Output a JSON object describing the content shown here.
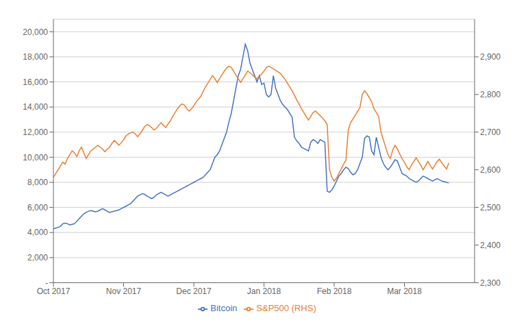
{
  "chart_data": {
    "type": "line",
    "x": [
      0,
      1,
      2,
      3,
      4,
      5,
      6,
      7,
      8,
      9,
      10,
      11,
      12,
      13,
      14,
      15,
      16,
      17,
      18,
      19,
      20,
      21,
      22,
      23,
      24,
      25,
      26,
      27,
      28,
      29,
      30,
      31,
      32,
      33,
      34,
      35,
      36,
      37,
      38,
      39,
      40,
      41,
      42,
      43,
      44,
      45,
      46,
      47,
      48,
      49,
      50,
      51,
      52,
      53,
      54,
      55,
      56,
      57,
      58,
      59,
      60,
      61,
      62,
      63,
      64,
      65,
      66,
      67,
      68,
      69,
      70,
      71,
      72,
      73,
      74,
      75,
      76,
      77,
      78,
      79,
      80,
      81,
      82,
      83,
      84,
      85,
      86,
      87,
      88,
      89,
      90,
      91,
      92,
      93,
      94,
      95,
      96,
      97,
      98,
      99,
      100,
      101,
      102,
      103,
      104,
      105,
      106,
      107,
      108,
      109,
      110,
      111,
      112,
      113,
      114,
      115,
      116,
      117,
      118,
      119,
      120,
      121,
      122,
      123,
      124,
      125,
      126,
      127,
      128,
      129,
      130,
      131,
      132,
      133,
      134,
      135,
      136,
      137,
      138,
      139,
      140,
      141,
      142,
      143,
      144,
      145,
      146,
      147,
      148,
      149,
      150,
      151,
      152,
      153,
      154,
      155,
      156,
      157,
      158,
      159,
      160,
      161,
      162,
      163,
      164,
      165,
      166,
      167,
      168,
      169
    ],
    "xlim": [
      0,
      180
    ],
    "xticks": [
      {
        "value": 0,
        "label": "Oct 2017"
      },
      {
        "value": 30,
        "label": "Nov 2017"
      },
      {
        "value": 60,
        "label": "Dec 2017"
      },
      {
        "value": 90,
        "label": "Jan 2018"
      },
      {
        "value": 120,
        "label": "Feb 2018"
      },
      {
        "value": 150,
        "label": "Mar 2018"
      }
    ],
    "ylim": [
      0,
      21000
    ],
    "yticks": [
      {
        "value": 0,
        "label": "-"
      },
      {
        "value": 2000,
        "label": "2,000"
      },
      {
        "value": 4000,
        "label": "4,000"
      },
      {
        "value": 6000,
        "label": "6,000"
      },
      {
        "value": 8000,
        "label": "8,000"
      },
      {
        "value": 10000,
        "label": "10,000"
      },
      {
        "value": 12000,
        "label": "12,000"
      },
      {
        "value": 14000,
        "label": "14,000"
      },
      {
        "value": 16000,
        "label": "16,000"
      },
      {
        "value": 18000,
        "label": "18,000"
      },
      {
        "value": 20000,
        "label": "20,000"
      }
    ],
    "y2lim": [
      2300,
      3000
    ],
    "y2ticks": [
      {
        "value": 2300,
        "label": "2,300"
      },
      {
        "value": 2400,
        "label": "2,400"
      },
      {
        "value": 2500,
        "label": "2,500"
      },
      {
        "value": 2600,
        "label": "2,600"
      },
      {
        "value": 2700,
        "label": "2,700"
      },
      {
        "value": 2800,
        "label": "2,800"
      },
      {
        "value": 2900,
        "label": "2,900"
      }
    ],
    "grid": true,
    "legend": "bottom",
    "series": [
      {
        "name": "Bitcoin",
        "color": "#4472c4",
        "values": [
          4300,
          4350,
          4400,
          4500,
          4700,
          4750,
          4700,
          4600,
          4650,
          4700,
          4900,
          5100,
          5300,
          5500,
          5600,
          5700,
          5750,
          5700,
          5650,
          5700,
          5800,
          5900,
          5800,
          5700,
          5600,
          5650,
          5700,
          5750,
          5800,
          5900,
          6000,
          6100,
          6200,
          6300,
          6500,
          6700,
          6900,
          7000,
          7100,
          7050,
          6900,
          6800,
          6700,
          6800,
          7000,
          7100,
          7200,
          7100,
          7000,
          6900,
          7000,
          7100,
          7200,
          7300,
          7400,
          7500,
          7600,
          7700,
          7800,
          7900,
          8000,
          8100,
          8200,
          8300,
          8400,
          8600,
          8800,
          9000,
          9500,
          10000,
          10200,
          10500,
          11000,
          11500,
          12000,
          12800,
          13500,
          14500,
          15500,
          16500,
          17000,
          18000,
          19000,
          18500,
          17500,
          17000,
          16500,
          16000,
          16500,
          15800,
          15900,
          15000,
          14800,
          15000,
          16500,
          15500,
          15000,
          14500,
          14200,
          14000,
          13800,
          13500,
          13200,
          11600,
          11300,
          11100,
          10800,
          10700,
          10600,
          10500,
          11200,
          11400,
          11300,
          11100,
          11400,
          11300,
          11200,
          7300,
          7200,
          7400,
          7700,
          8100,
          8500,
          8700,
          9000,
          9200,
          9100,
          8800,
          8600,
          8700,
          9000,
          9500,
          10000,
          11500,
          11700,
          11600,
          10500,
          10200,
          11600,
          10800,
          10000,
          9500,
          9200,
          9000,
          9200,
          9500,
          9800,
          9700,
          9200,
          8700,
          8600,
          8500,
          8300,
          8200,
          8100,
          8000,
          8100,
          8300,
          8500,
          8400,
          8300,
          8200,
          8100,
          8200,
          8300,
          8200,
          8100,
          8050,
          8000,
          7950
        ]
      },
      {
        "name": "S&P500 (RHS)",
        "color": "#ed7d31",
        "axis": "y2",
        "values": [
          2580,
          2590,
          2600,
          2610,
          2620,
          2615,
          2630,
          2640,
          2650,
          2645,
          2635,
          2650,
          2660,
          2645,
          2630,
          2640,
          2650,
          2655,
          2660,
          2665,
          2660,
          2655,
          2648,
          2655,
          2660,
          2670,
          2678,
          2672,
          2665,
          2672,
          2680,
          2690,
          2695,
          2698,
          2700,
          2695,
          2688,
          2695,
          2705,
          2715,
          2720,
          2718,
          2712,
          2706,
          2710,
          2718,
          2725,
          2718,
          2712,
          2722,
          2730,
          2742,
          2752,
          2762,
          2770,
          2775,
          2772,
          2762,
          2756,
          2762,
          2770,
          2780,
          2788,
          2795,
          2808,
          2820,
          2830,
          2840,
          2850,
          2842,
          2832,
          2842,
          2852,
          2862,
          2870,
          2875,
          2872,
          2862,
          2852,
          2842,
          2832,
          2842,
          2852,
          2862,
          2858,
          2852,
          2846,
          2842,
          2848,
          2855,
          2862,
          2872,
          2875,
          2872,
          2868,
          2864,
          2860,
          2856,
          2848,
          2840,
          2830,
          2820,
          2810,
          2798,
          2785,
          2775,
          2762,
          2752,
          2742,
          2732,
          2742,
          2752,
          2756,
          2750,
          2744,
          2738,
          2730,
          2720,
          2600,
          2580,
          2570,
          2578,
          2590,
          2602,
          2615,
          2625,
          2705,
          2725,
          2735,
          2745,
          2755,
          2765,
          2800,
          2810,
          2802,
          2792,
          2780,
          2762,
          2752,
          2742,
          2700,
          2680,
          2660,
          2640,
          2630,
          2652,
          2665,
          2655,
          2642,
          2630,
          2620,
          2608,
          2600,
          2612,
          2622,
          2632,
          2622,
          2612,
          2600,
          2610,
          2622,
          2612,
          2602,
          2612,
          2622,
          2628,
          2618,
          2610,
          2602,
          2618
        ]
      }
    ]
  }
}
